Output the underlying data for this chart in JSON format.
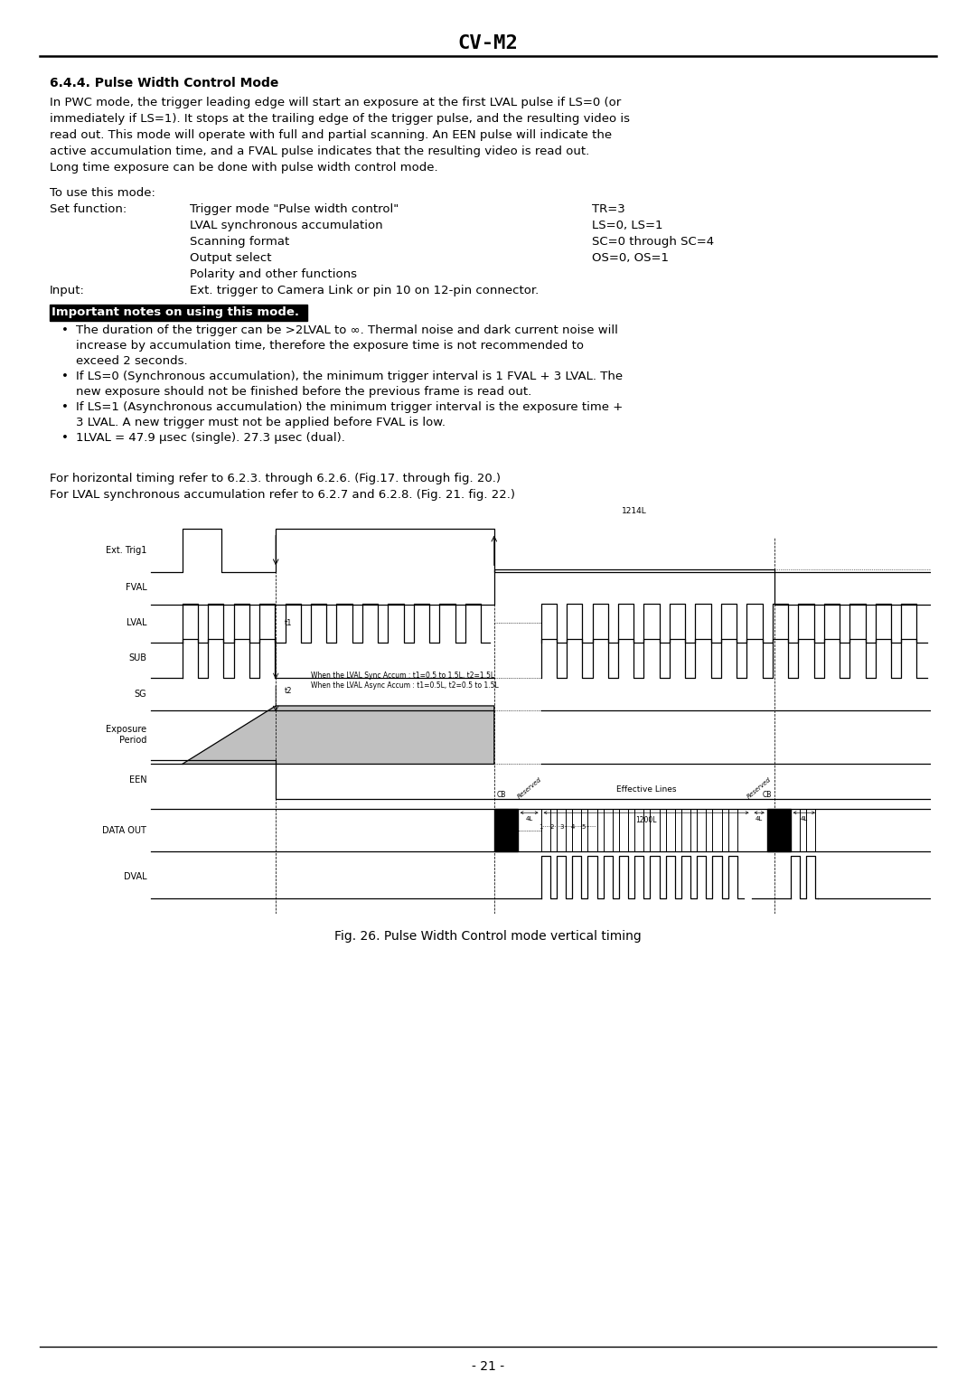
{
  "title": "CV-M2",
  "section_title": "6.4.4. Pulse Width Control Mode",
  "body_text_lines": [
    "In PWC mode, the trigger leading edge will start an exposure at the first LVAL pulse if LS=0 (or",
    "immediately if LS=1). It stops at the trailing edge of the trigger pulse, and the resulting video is",
    "read out. This mode will operate with full and partial scanning. An EEN pulse will indicate the",
    "active accumulation time, and a FVAL pulse indicates that the resulting video is read out.",
    "Long time exposure can be done with pulse width control mode."
  ],
  "to_use": "To use this mode:",
  "set_function": "Set function:",
  "input_label": "Input:",
  "func_rows": [
    [
      "Trigger mode \"Pulse width control\"",
      "TR=3"
    ],
    [
      "LVAL synchronous accumulation",
      "LS=0, LS=1"
    ],
    [
      "Scanning format",
      "SC=0 through SC=4"
    ],
    [
      "Output select",
      "OS=0, OS=1"
    ],
    [
      "Polarity and other functions",
      ""
    ]
  ],
  "input_text": "Ext. trigger to Camera Link or pin 10 on 12-pin connector.",
  "important_label": "Important notes on using this mode.",
  "bullet_lines": [
    [
      "The duration of the trigger can be >2LVAL to ∞. Thermal noise and dark current noise will",
      true
    ],
    [
      "increase by accumulation time, therefore the exposure time is not recommended to",
      false
    ],
    [
      "exceed 2 seconds.",
      false
    ],
    [
      "If LS=0 (Synchronous accumulation), the minimum trigger interval is 1 FVAL + 3 LVAL. The",
      true
    ],
    [
      "new exposure should not be finished before the previous frame is read out.",
      false
    ],
    [
      "If LS=1 (Asynchronous accumulation) the minimum trigger interval is the exposure time +",
      true
    ],
    [
      "3 LVAL. A new trigger must not be applied before FVAL is low.",
      false
    ],
    [
      "1LVAL = 47.9 μsec (single). 27.3 μsec (dual).",
      true
    ]
  ],
  "ref_text1": "For horizontal timing refer to 6.2.3. through 6.2.6. (Fig.17. through fig. 20.)",
  "ref_text2": "For LVAL synchronous accumulation refer to 6.2.7 and 6.2.8. (Fig. 21. fig. 22.)",
  "fig_caption": "Fig. 26. Pulse Width Control mode vertical timing",
  "page_number": "- 21 -",
  "background_color": "#ffffff"
}
